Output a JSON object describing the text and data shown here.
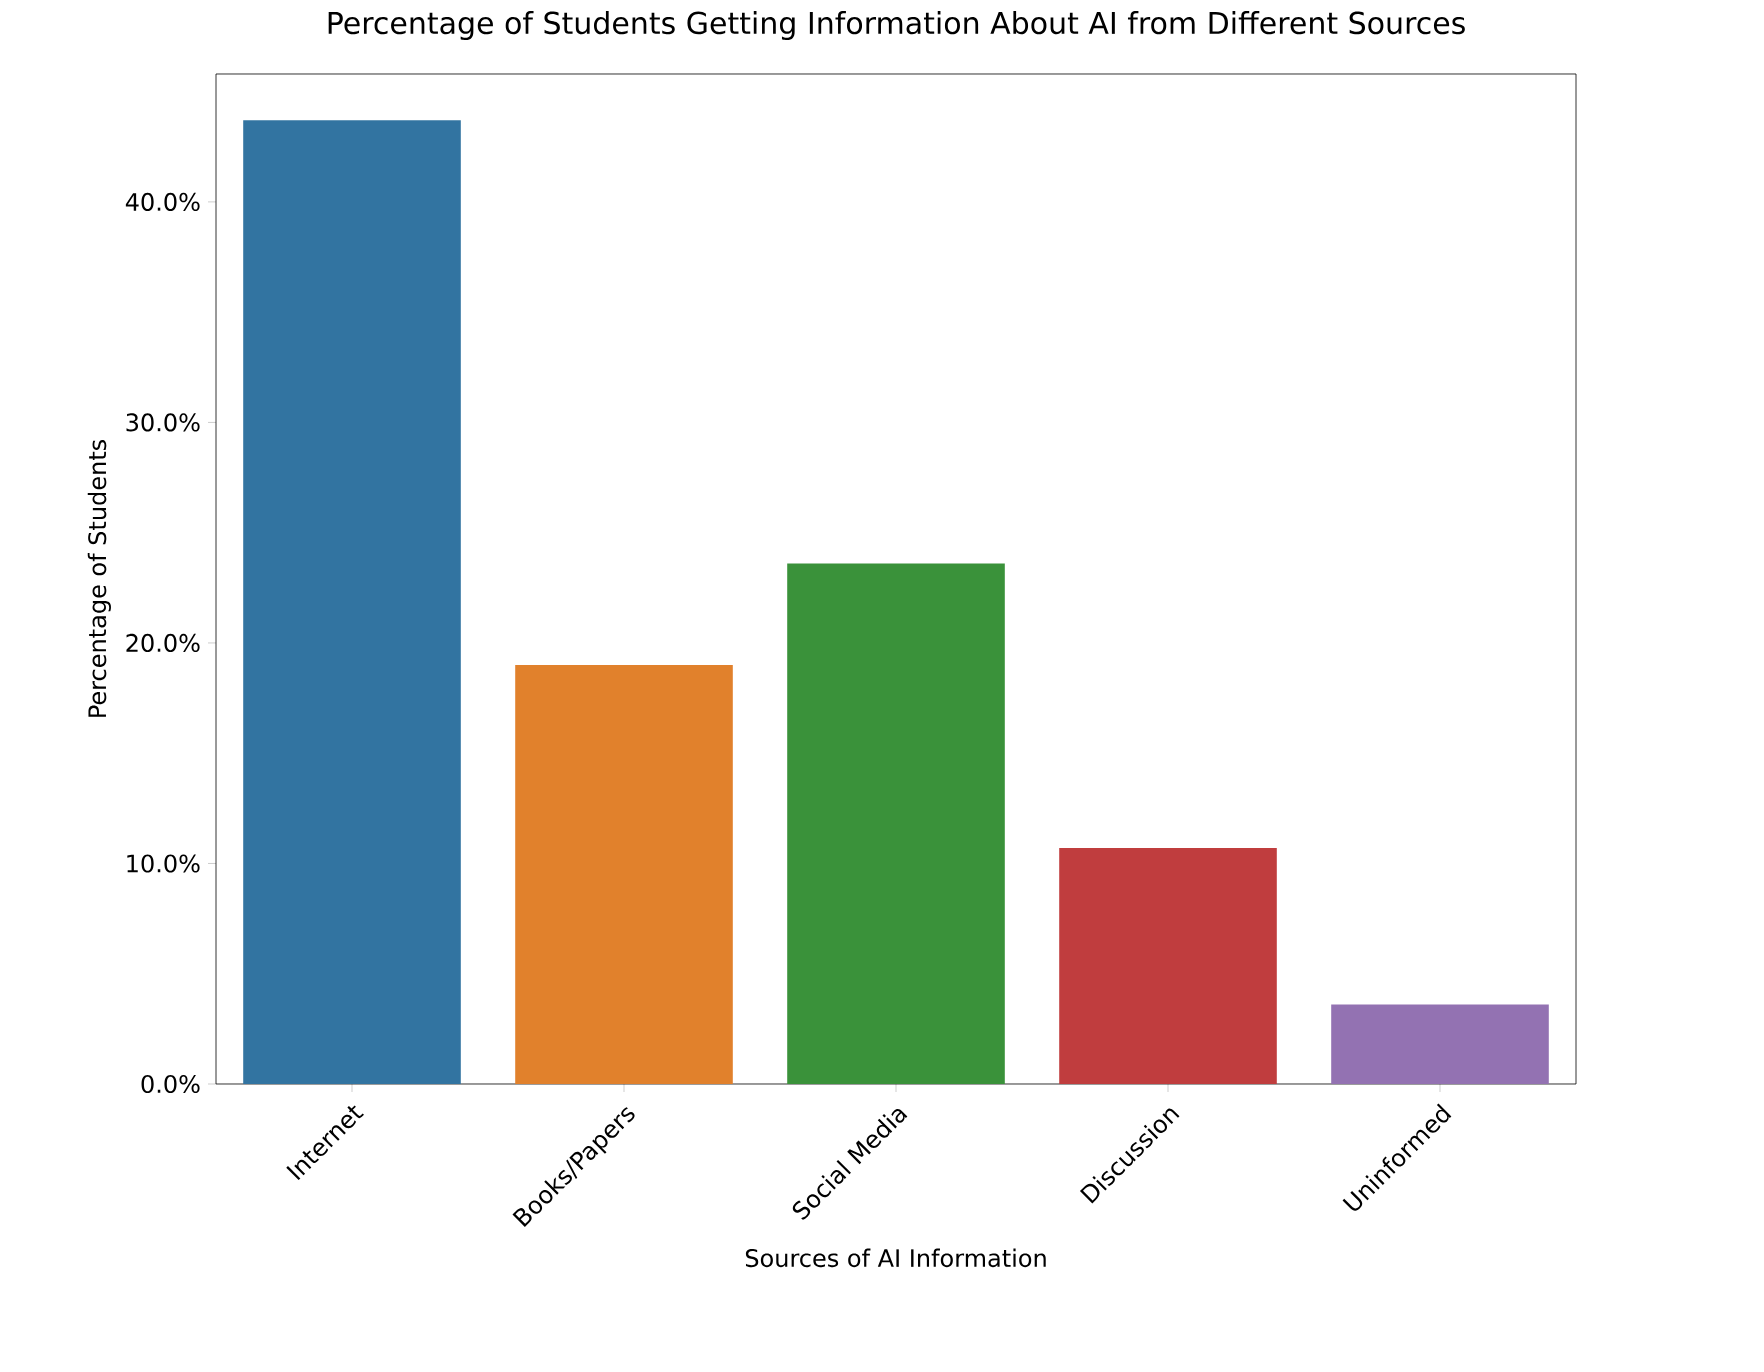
{
  "chart_data": {
    "type": "bar",
    "title": "Percentage of Students Getting Information About AI from Different Sources",
    "xlabel": "Sources of AI Information",
    "ylabel": "Percentage of Students",
    "categories": [
      "Internet",
      "Books/Papers",
      "Social Media",
      "Discussion",
      "Uninformed"
    ],
    "values": [
      43.7,
      19.0,
      23.6,
      10.7,
      3.6
    ],
    "colors": [
      "#3274a1",
      "#e1812c",
      "#3a923a",
      "#c03d3e",
      "#9372b2"
    ],
    "ylim": [
      0,
      45.8
    ],
    "yticks": [
      {
        "value": 0,
        "label": "0.0%"
      },
      {
        "value": 10,
        "label": "10.0%"
      },
      {
        "value": 20,
        "label": "20.0%"
      },
      {
        "value": 30,
        "label": "30.0%"
      },
      {
        "value": 40,
        "label": "40.0%"
      }
    ]
  }
}
